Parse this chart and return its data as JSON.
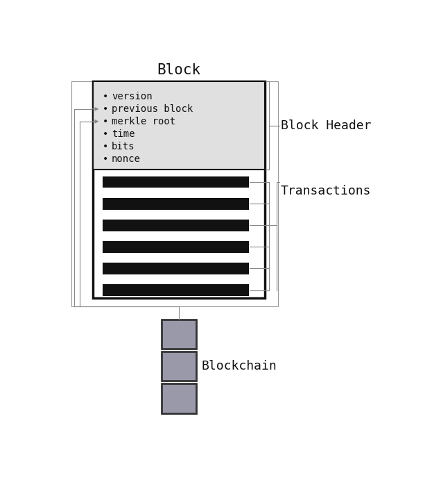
{
  "title": "Block",
  "title_fontsize": 15,
  "title_font": "monospace",
  "block_header_label": "Block Header",
  "transactions_label": "Transactions",
  "blockchain_label": "Blockchain",
  "header_items": [
    "version",
    "previous block",
    "merkle root",
    "time",
    "bits",
    "nonce"
  ],
  "header_arrow_items": [
    1,
    2
  ],
  "num_transaction_bars": 6,
  "header_bg": "#e0e0e0",
  "transaction_bar_color": "#111111",
  "blockchain_box_color": "#9999aa",
  "blockchain_box_edge": "#333333",
  "block_edge_color": "#111111",
  "font_color": "#111111",
  "font_family": "monospace",
  "item_fontsize": 10,
  "label_fontsize": 13,
  "connector_color": "#888888",
  "outer_rect_color": "#999999"
}
